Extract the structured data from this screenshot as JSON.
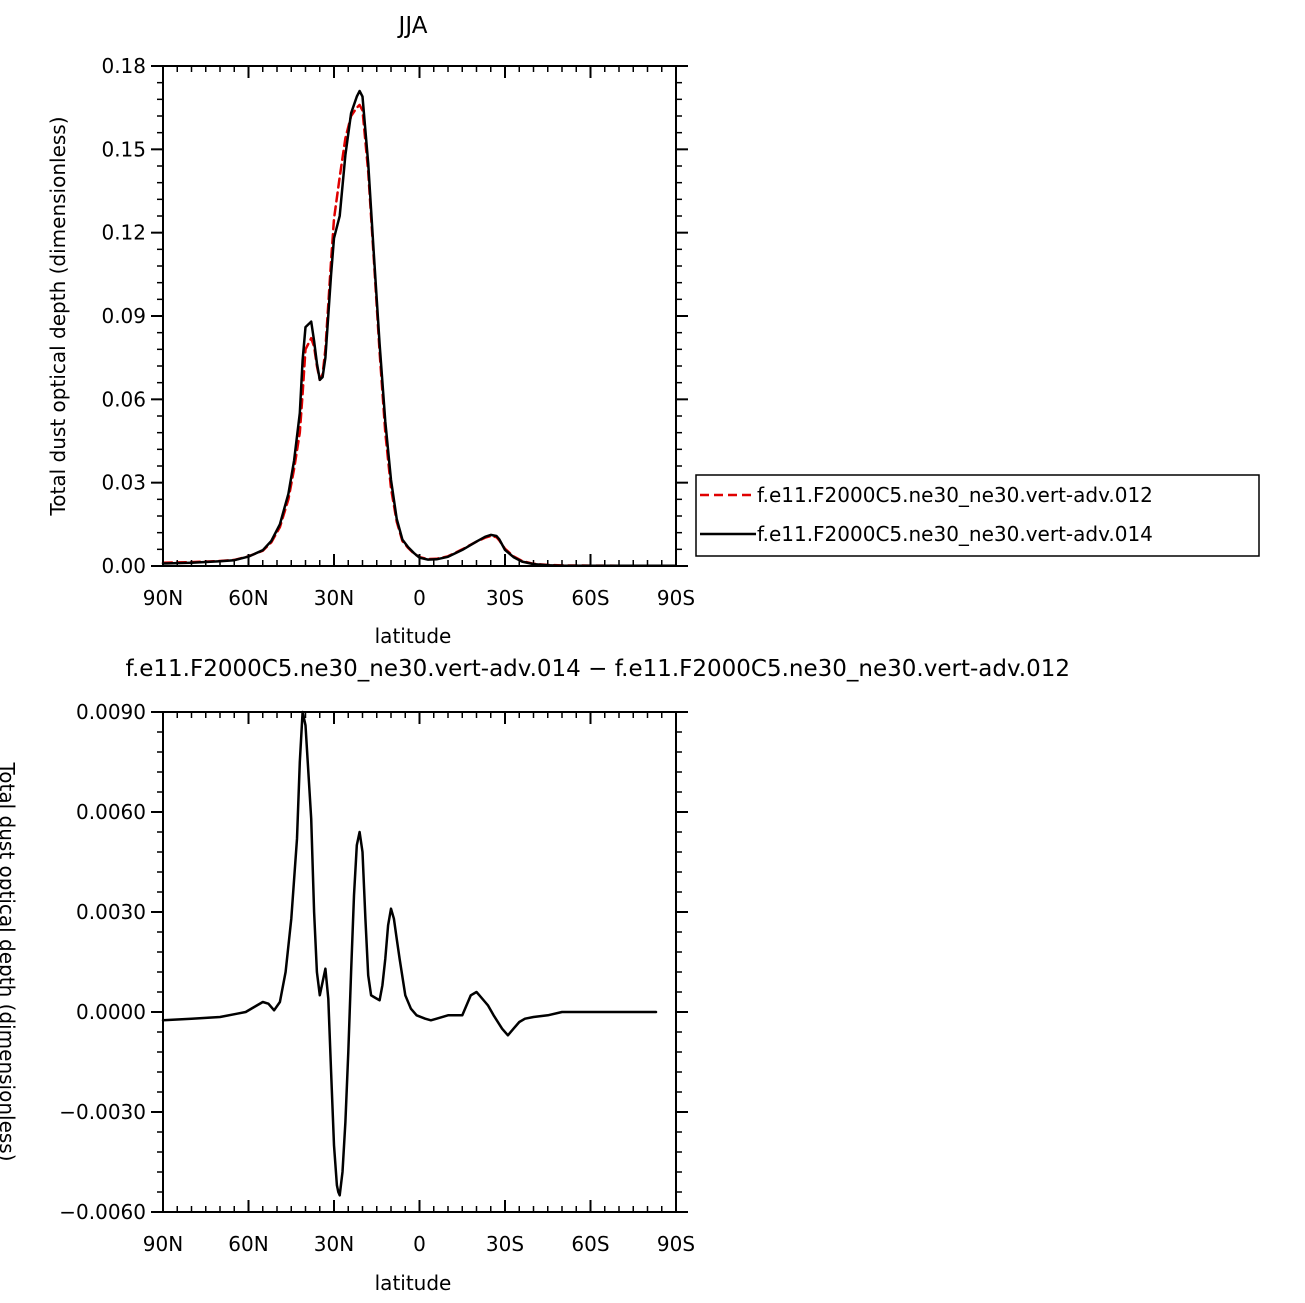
{
  "colors": {
    "case_012": "#e00000",
    "case_014": "#000000",
    "difference": "#000000"
  },
  "chart_data": [
    {
      "type": "line",
      "title": "JJA",
      "xlabel": "latitude",
      "ylabel": "Total dust optical depth (dimensionless)",
      "xlim": [
        90,
        -90
      ],
      "ylim": [
        0,
        0.18
      ],
      "x_ticks": [
        90,
        60,
        30,
        0,
        -30,
        -60,
        -90
      ],
      "x_tick_labels": [
        "90N",
        "60N",
        "30N",
        "0",
        "30S",
        "60S",
        "90S"
      ],
      "y_ticks": [
        0,
        0.03,
        0.06,
        0.09,
        0.12,
        0.15,
        0.18
      ],
      "y_tick_labels": [
        "0.00",
        "0.03",
        "0.06",
        "0.09",
        "0.12",
        "0.15",
        "0.18"
      ],
      "legend_position": "right",
      "series": [
        {
          "name": "f.e11.F2000C5.ne30_ne30.vert-adv.012",
          "style": "dashed",
          "color": "#e00000",
          "x": [
            90,
            80,
            70,
            65,
            60,
            55,
            52,
            49,
            46,
            44,
            42,
            41,
            40,
            38,
            37,
            36,
            35,
            34,
            33,
            31,
            30,
            28,
            26,
            24,
            22,
            21,
            20,
            18,
            16,
            14,
            12,
            10,
            8,
            6,
            4,
            2,
            0,
            -3,
            -6,
            -10,
            -15,
            -20,
            -23,
            -25,
            -27,
            -28,
            -30,
            -33,
            -36,
            -40,
            -45,
            -50,
            -60,
            -70,
            -80,
            -90
          ],
          "y": [
            0.0012,
            0.0014,
            0.0018,
            0.0022,
            0.0035,
            0.0055,
            0.0085,
            0.014,
            0.024,
            0.035,
            0.048,
            0.062,
            0.078,
            0.082,
            0.079,
            0.072,
            0.067,
            0.069,
            0.078,
            0.11,
            0.125,
            0.14,
            0.154,
            0.162,
            0.165,
            0.166,
            0.164,
            0.142,
            0.11,
            0.077,
            0.048,
            0.028,
            0.016,
            0.009,
            0.0065,
            0.0045,
            0.0032,
            0.0025,
            0.0026,
            0.0035,
            0.006,
            0.0088,
            0.0102,
            0.0108,
            0.0104,
            0.0092,
            0.0062,
            0.0035,
            0.0018,
            0.0008,
            0.0004,
            0.0002,
            0.00015,
            0.0001,
            0.0001,
            0.0001
          ]
        },
        {
          "name": "f.e11.F2000C5.ne30_ne30.vert-adv.014",
          "style": "solid",
          "color": "#000000",
          "x": [
            90,
            80,
            70,
            65,
            60,
            55,
            52,
            49,
            46,
            44,
            42,
            41,
            40,
            38,
            37,
            36,
            35,
            34,
            33,
            31,
            30,
            28,
            26,
            24,
            22,
            21,
            20,
            18,
            16,
            14,
            12,
            10,
            8,
            6,
            4,
            2,
            0,
            -3,
            -6,
            -10,
            -15,
            -20,
            -23,
            -25,
            -27,
            -28,
            -30,
            -33,
            -36,
            -40,
            -45,
            -50,
            -60,
            -70,
            -80,
            -90
          ],
          "y": [
            0.0009,
            0.0012,
            0.0017,
            0.0021,
            0.0034,
            0.0057,
            0.009,
            0.015,
            0.026,
            0.038,
            0.055,
            0.074,
            0.086,
            0.088,
            0.081,
            0.073,
            0.067,
            0.068,
            0.075,
            0.105,
            0.118,
            0.126,
            0.148,
            0.163,
            0.169,
            0.171,
            0.169,
            0.145,
            0.112,
            0.08,
            0.052,
            0.031,
            0.017,
            0.0095,
            0.0068,
            0.0047,
            0.003,
            0.0023,
            0.0024,
            0.0033,
            0.0058,
            0.0088,
            0.0105,
            0.0112,
            0.0108,
            0.0096,
            0.0058,
            0.0032,
            0.0016,
            0.0007,
            0.0003,
            0.0001,
            0.0001,
            0.0001,
            0.0001,
            0.0001
          ]
        }
      ]
    },
    {
      "type": "line",
      "title": "f.e11.F2000C5.ne30_ne30.vert-adv.014 − f.e11.F2000C5.ne30_ne30.vert-adv.012",
      "xlabel": "latitude",
      "ylabel": "Total dust optical depth (dimensionless)",
      "xlim": [
        90,
        -90
      ],
      "ylim": [
        -0.006,
        0.009
      ],
      "x_ticks": [
        90,
        60,
        30,
        0,
        -30,
        -60,
        -90
      ],
      "x_tick_labels": [
        "90N",
        "60N",
        "30N",
        "0",
        "30S",
        "60S",
        "90S"
      ],
      "y_ticks": [
        -0.006,
        -0.003,
        0,
        0.003,
        0.006,
        0.009
      ],
      "y_tick_labels": [
        "−0.0060",
        "−0.0030",
        "0.0000",
        "0.0030",
        "0.0060",
        "0.0090"
      ],
      "series": [
        {
          "style": "solid",
          "color": "#000000",
          "x": [
            90,
            80,
            70,
            64,
            61,
            58,
            55,
            53,
            51,
            49,
            47,
            45,
            43,
            42,
            41,
            40,
            38,
            37,
            36,
            35,
            34,
            33,
            32,
            31,
            30,
            29,
            28.5,
            28,
            27,
            26,
            25,
            24,
            23,
            22,
            21,
            20,
            19,
            18,
            17,
            16,
            14,
            13,
            12,
            11,
            10,
            9,
            8,
            7,
            5,
            3,
            1,
            -2,
            -4,
            -6,
            -10,
            -12,
            -15,
            -18,
            -20,
            -21,
            -23,
            -24,
            -26,
            -29,
            -31,
            -33,
            -35,
            -37,
            -40,
            -45,
            -50,
            -60,
            -70,
            -80,
            -83
          ],
          "y": [
            -0.00025,
            -0.0002,
            -0.00015,
            -5e-05,
            0,
            0.00015,
            0.0003,
            0.00025,
            5e-05,
            0.0003,
            0.0012,
            0.0028,
            0.0052,
            0.0075,
            0.009,
            0.0086,
            0.0058,
            0.003,
            0.0012,
            0.0005,
            0.0009,
            0.0013,
            0.0004,
            -0.0018,
            -0.004,
            -0.0052,
            -0.0054,
            -0.0055,
            -0.0048,
            -0.0033,
            -0.0012,
            0.0012,
            0.0035,
            0.005,
            0.0054,
            0.0048,
            0.0028,
            0.0011,
            0.0005,
            0.00045,
            0.00035,
            0.0008,
            0.0016,
            0.0026,
            0.0031,
            0.0028,
            0.0022,
            0.0016,
            0.0005,
            0.0001,
            -0.0001,
            -0.0002,
            -0.00025,
            -0.0002,
            -0.0001,
            -0.0001,
            -0.0001,
            0.0005,
            0.0006,
            0.0005,
            0.0003,
            0.0002,
            -0.0001,
            -0.0005,
            -0.0007,
            -0.0005,
            -0.0003,
            -0.0002,
            -0.00015,
            -0.0001,
            0,
            0,
            0,
            0,
            0
          ]
        }
      ]
    }
  ]
}
